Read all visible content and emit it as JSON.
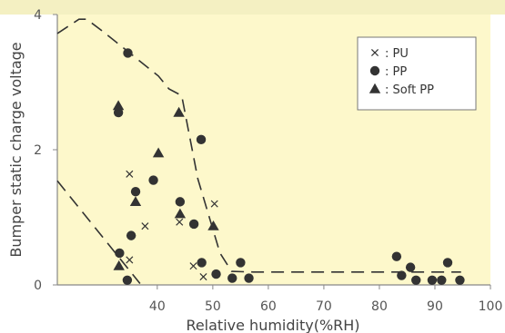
{
  "colors": {
    "plot_bg": "#FDF8CB",
    "top_band": "#F4F0C2",
    "marker": "#333333",
    "envelope": "#333333",
    "axis_text": "#555555"
  },
  "chart_data": {
    "type": "scatter",
    "title": "",
    "xlabel": "Relative humidity(%RH)",
    "ylabel": "Bumper static charge voltage",
    "xlim": [
      22,
      100
    ],
    "ylim": [
      0,
      4
    ],
    "x_ticks": [
      "40",
      "50",
      "60",
      "70",
      "80",
      "90",
      "100"
    ],
    "y_ticks": [
      "0",
      "2",
      "4"
    ],
    "x_tick_values": [
      40,
      50,
      60,
      70,
      80,
      90,
      100
    ],
    "y_tick_values": [
      0,
      2,
      4
    ],
    "grid": false,
    "legend_position": "top-right",
    "series": [
      {
        "name": ": PU",
        "marker": "x",
        "points": [
          [
            35,
            1.64
          ],
          [
            37.8,
            0.87
          ],
          [
            35,
            0.37
          ],
          [
            44,
            0.93
          ],
          [
            46.5,
            0.28
          ],
          [
            48.3,
            0.12
          ],
          [
            50.3,
            1.2
          ]
        ]
      },
      {
        "name": ": PP",
        "marker": "circle",
        "points": [
          [
            34.7,
            3.43
          ],
          [
            33,
            2.55
          ],
          [
            33.2,
            0.47
          ],
          [
            35.3,
            0.73
          ],
          [
            34.6,
            0.07
          ],
          [
            36.1,
            1.38
          ],
          [
            39.3,
            1.55
          ],
          [
            44.1,
            1.23
          ],
          [
            46.6,
            0.9
          ],
          [
            47.9,
            2.15
          ],
          [
            48,
            0.33
          ],
          [
            50.6,
            0.16
          ],
          [
            53.5,
            0.1
          ],
          [
            55,
            0.33
          ],
          [
            56.5,
            0.1
          ],
          [
            83.1,
            0.42
          ],
          [
            84,
            0.14
          ],
          [
            85.6,
            0.26
          ],
          [
            86.6,
            0.07
          ],
          [
            89.5,
            0.07
          ],
          [
            91.2,
            0.07
          ],
          [
            92.3,
            0.33
          ],
          [
            94.5,
            0.07
          ]
        ]
      },
      {
        "name": ": Soft PP",
        "marker": "triangle",
        "points": [
          [
            33,
            2.65
          ],
          [
            33.1,
            0.28
          ],
          [
            36.1,
            1.23
          ],
          [
            40.2,
            1.95
          ],
          [
            43.9,
            2.55
          ],
          [
            44.1,
            1.05
          ],
          [
            50.1,
            0.87
          ]
        ]
      }
    ],
    "envelopes": [
      {
        "type": "dashed-boundary",
        "points": [
          [
            22,
            3.72
          ],
          [
            25.9,
            3.93
          ],
          [
            27.3,
            3.93
          ],
          [
            30.5,
            3.73
          ],
          [
            40.2,
            3.09
          ],
          [
            42.1,
            2.9
          ],
          [
            44.4,
            2.8
          ],
          [
            47.3,
            1.57
          ],
          [
            51.3,
            0.47
          ],
          [
            53.4,
            0.2
          ],
          [
            57.3,
            0.19
          ],
          [
            94.7,
            0.19
          ]
        ]
      },
      {
        "type": "dashed-boundary",
        "points": [
          [
            22,
            1.54
          ],
          [
            31.5,
            0.57
          ],
          [
            36.9,
            0.02
          ]
        ]
      }
    ]
  }
}
